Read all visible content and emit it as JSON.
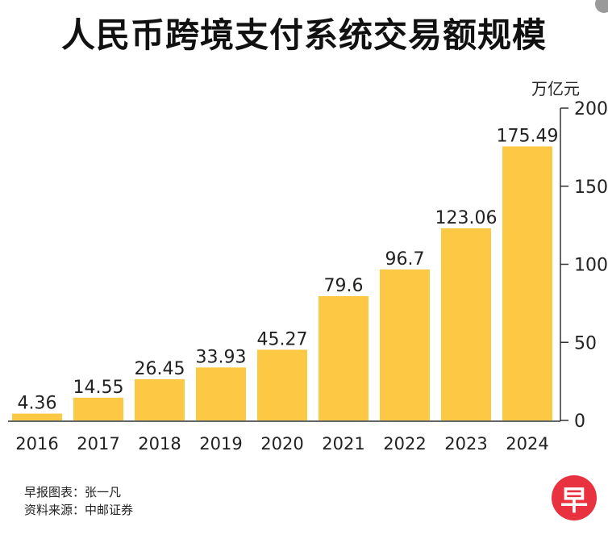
{
  "chart_data": {
    "type": "bar",
    "title": "人民币跨境支付系统交易额规模",
    "unit": "万亿元",
    "categories": [
      "2016",
      "2017",
      "2018",
      "2019",
      "2020",
      "2021",
      "2022",
      "2023",
      "2024"
    ],
    "values": [
      4.36,
      14.55,
      26.45,
      33.93,
      45.27,
      79.6,
      96.7,
      123.06,
      175.49
    ],
    "value_labels": [
      "4.36",
      "14.55",
      "26.45",
      "33.93",
      "45.27",
      "79.6",
      "96.7",
      "123.06",
      "175.49"
    ],
    "ylim": [
      0,
      200
    ],
    "yticks": [
      0,
      50,
      100,
      150,
      200
    ],
    "ytick_labels": [
      "0",
      "50",
      "100",
      "150",
      "200"
    ],
    "y_axis_position": "right",
    "grid": false,
    "bar_color": "#fdc945"
  },
  "footer": {
    "chart_credit": "早报图表：张一凡",
    "source": "资料来源：中邮证券",
    "logo_char": "早"
  },
  "colors": {
    "bar": "#fdc945",
    "text": "#222222",
    "logo": "#e8323f"
  }
}
